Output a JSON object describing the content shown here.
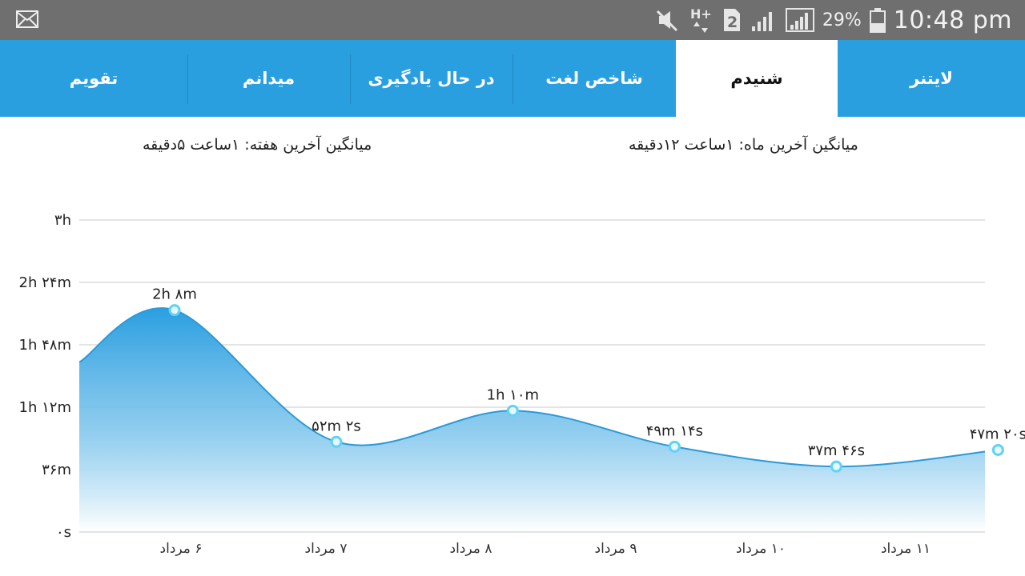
{
  "status_bar": {
    "icons": [
      "mail-icon",
      "mute-icon",
      "data-hplus-icon",
      "sim-2-icon",
      "signal-icon",
      "signal-icon-2",
      "battery-icon"
    ],
    "battery_percent": "29%",
    "time": "10:48 pm"
  },
  "tabs": [
    {
      "label": "لایتنر",
      "active": false
    },
    {
      "label": "شنیدم",
      "active": true
    },
    {
      "label": "شاخص لغت",
      "active": false
    },
    {
      "label": "در حال یادگیری",
      "active": false
    },
    {
      "label": "میدانم",
      "active": false
    },
    {
      "label": "تقویم",
      "active": false
    }
  ],
  "averages": {
    "month": "میانگین آخرین ماه: ۱ساعت  ۱۲دقیقه",
    "week": "میانگین آخرین هفته: ۱ساعت  ۵دقیقه"
  },
  "colors": {
    "status_bar": "#6f6f6f",
    "tab_bar": "#2a9fe0",
    "tab_active_bg": "#ffffff",
    "area_top": "#2a9fe0",
    "line": "#2b9ad6",
    "marker_fill": "#e8f7ff",
    "marker_stroke": "#5ed3f5"
  },
  "chart_data": {
    "type": "area",
    "y_unit": "minutes",
    "ylim": [
      0,
      180
    ],
    "y_ticks": [
      {
        "value": 0,
        "label": "۰s"
      },
      {
        "value": 36,
        "label": "۳۶m"
      },
      {
        "value": 72,
        "label": "1h ۱۲m"
      },
      {
        "value": 108,
        "label": "1h ۴۸m"
      },
      {
        "value": 144,
        "label": "2h ۲۴m"
      },
      {
        "value": 180,
        "label": "۳h"
      }
    ],
    "grid": true,
    "categories": [
      "۶ مرداد",
      "۷ مرداد",
      "۸ مرداد",
      "۹ مرداد",
      "۱۰ مرداد",
      "۱۱ مرداد"
    ],
    "points": [
      {
        "x": 0.7,
        "y": 128,
        "label": "2h ۸m"
      },
      {
        "x": 1.8,
        "y": 52.03,
        "label": "۵۲m ۲s"
      },
      {
        "x": 3.0,
        "y": 70,
        "label": "1h ۱۰m"
      },
      {
        "x": 4.1,
        "y": 49.23,
        "label": "۴۹m ۱۴s"
      },
      {
        "x": 5.2,
        "y": 37.77,
        "label": "۳۷m ۴۶s"
      },
      {
        "x": 6.3,
        "y": 47.33,
        "label": "۴۷m ۲۰s"
      }
    ],
    "line_start_y": 98
  }
}
